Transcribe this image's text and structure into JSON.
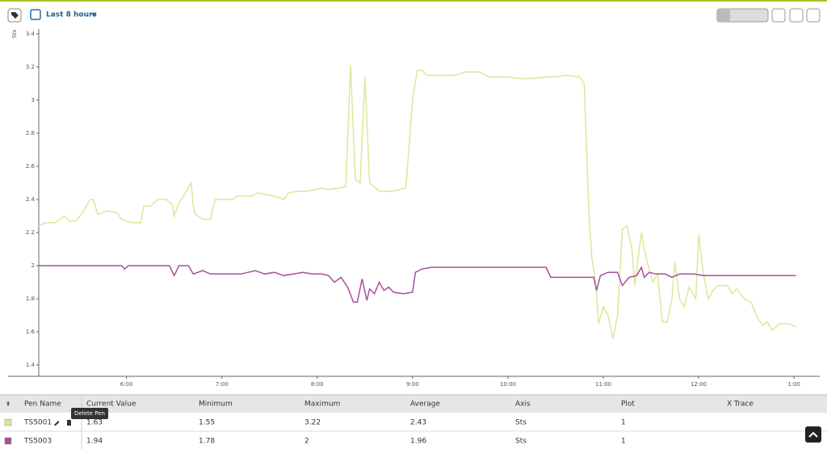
{
  "toolbar": {
    "time_range": "Last 8 hours"
  },
  "chart_data": {
    "type": "line",
    "y_label": "Sts",
    "xlim": [
      5.08,
      13.27
    ],
    "ylim": [
      1.4,
      3.4
    ],
    "xticks": [
      {
        "value": 6,
        "label": "6:00"
      },
      {
        "value": 7,
        "label": "7:00"
      },
      {
        "value": 8,
        "label": "8:00"
      },
      {
        "value": 9,
        "label": "9:00"
      },
      {
        "value": 10,
        "label": "10:00"
      },
      {
        "value": 11,
        "label": "11:00"
      },
      {
        "value": 12,
        "label": "12:00"
      },
      {
        "value": 13,
        "label": "1:00"
      }
    ],
    "yticks": [
      1.4,
      1.6,
      1.8,
      2,
      2.2,
      2.4,
      2.6,
      2.8,
      3,
      3.2,
      3.4
    ],
    "series": [
      {
        "name": "TS5001",
        "color": "#dbe89a",
        "x": [
          5.08,
          5.15,
          5.25,
          5.3,
          5.35,
          5.4,
          5.47,
          5.55,
          5.62,
          5.65,
          5.7,
          5.8,
          5.9,
          5.95,
          6.05,
          6.15,
          6.18,
          6.25,
          6.33,
          6.42,
          6.48,
          6.5,
          6.55,
          6.62,
          6.68,
          6.7,
          6.72,
          6.8,
          6.88,
          6.93,
          7.05,
          7.12,
          7.15,
          7.3,
          7.38,
          7.45,
          7.55,
          7.65,
          7.7,
          7.8,
          7.9,
          8.05,
          8.1,
          8.25,
          8.3,
          8.35,
          8.4,
          8.45,
          8.5,
          8.55,
          8.65,
          8.8,
          8.93,
          9.0,
          9.05,
          9.1,
          9.15,
          9.3,
          9.45,
          9.55,
          9.7,
          9.8,
          10.0,
          10.15,
          10.25,
          10.4,
          10.5,
          10.6,
          10.75,
          10.8,
          10.85,
          10.88,
          10.92,
          10.95,
          11.0,
          11.05,
          11.1,
          11.15,
          11.2,
          11.25,
          11.3,
          11.33,
          11.4,
          11.43,
          11.47,
          11.52,
          11.57,
          11.62,
          11.67,
          11.72,
          11.75,
          11.8,
          11.85,
          11.9,
          11.97,
          12.0,
          12.05,
          12.1,
          12.15,
          12.2,
          12.3,
          12.35,
          12.4,
          12.48,
          12.55,
          12.62,
          12.67,
          12.72,
          12.77,
          12.85,
          12.95,
          13.02
        ],
        "values": [
          2.24,
          2.26,
          2.26,
          2.28,
          2.3,
          2.27,
          2.27,
          2.33,
          2.4,
          2.4,
          2.31,
          2.33,
          2.32,
          2.28,
          2.26,
          2.26,
          2.36,
          2.36,
          2.4,
          2.4,
          2.37,
          2.3,
          2.38,
          2.44,
          2.5,
          2.36,
          2.31,
          2.28,
          2.28,
          2.4,
          2.4,
          2.4,
          2.42,
          2.42,
          2.44,
          2.43,
          2.42,
          2.4,
          2.44,
          2.45,
          2.45,
          2.47,
          2.46,
          2.47,
          2.48,
          3.21,
          2.52,
          2.5,
          3.14,
          2.5,
          2.45,
          2.45,
          2.47,
          3.0,
          3.18,
          3.18,
          3.15,
          3.15,
          3.15,
          3.17,
          3.17,
          3.14,
          3.14,
          3.13,
          3.13,
          3.14,
          3.14,
          3.15,
          3.14,
          3.1,
          2.3,
          2.05,
          1.9,
          1.65,
          1.75,
          1.7,
          1.56,
          1.7,
          2.22,
          2.24,
          2.1,
          1.88,
          2.2,
          2.1,
          2.0,
          1.9,
          1.95,
          1.66,
          1.66,
          1.8,
          2.02,
          1.8,
          1.75,
          1.87,
          1.8,
          2.19,
          1.95,
          1.8,
          1.85,
          1.88,
          1.88,
          1.83,
          1.86,
          1.8,
          1.78,
          1.68,
          1.64,
          1.66,
          1.61,
          1.65,
          1.65,
          1.63
        ]
      },
      {
        "name": "TS5003",
        "color": "#a8509a",
        "x": [
          5.08,
          5.95,
          5.98,
          6.02,
          6.45,
          6.5,
          6.55,
          6.65,
          6.7,
          6.8,
          6.88,
          7.2,
          7.35,
          7.45,
          7.55,
          7.65,
          7.75,
          7.85,
          7.95,
          8.05,
          8.12,
          8.18,
          8.25,
          8.32,
          8.38,
          8.42,
          8.47,
          8.52,
          8.55,
          8.6,
          8.65,
          8.7,
          8.75,
          8.8,
          8.9,
          9.0,
          9.03,
          9.1,
          9.2,
          10.4,
          10.45,
          10.9,
          10.93,
          10.97,
          11.05,
          11.15,
          11.2,
          11.27,
          11.35,
          11.4,
          11.43,
          11.48,
          11.55,
          11.65,
          11.72,
          11.8,
          11.95,
          12.05,
          13.02
        ],
        "values": [
          2.0,
          2.0,
          1.98,
          2.0,
          2.0,
          1.94,
          2.0,
          2.0,
          1.95,
          1.97,
          1.95,
          1.95,
          1.97,
          1.95,
          1.96,
          1.94,
          1.95,
          1.96,
          1.95,
          1.95,
          1.94,
          1.9,
          1.93,
          1.87,
          1.78,
          1.78,
          1.92,
          1.79,
          1.86,
          1.83,
          1.9,
          1.85,
          1.87,
          1.84,
          1.83,
          1.84,
          1.96,
          1.98,
          1.99,
          1.99,
          1.93,
          1.93,
          1.85,
          1.94,
          1.96,
          1.96,
          1.88,
          1.93,
          1.94,
          1.99,
          1.93,
          1.96,
          1.95,
          1.95,
          1.93,
          1.95,
          1.95,
          1.94,
          1.94
        ]
      }
    ]
  },
  "table": {
    "columns": [
      "Pen Name",
      "Current Value",
      "Minimum",
      "Maximum",
      "Average",
      "Axis",
      "Plot",
      "X Trace"
    ],
    "rows": [
      [
        "TS5001",
        1.63,
        1.55,
        3.22,
        2.43,
        "Sts",
        1
      ],
      [
        "TS5003",
        1.94,
        1.78,
        2,
        1.96,
        "Sts",
        1
      ]
    ]
  },
  "tooltip": "Delete Pen"
}
